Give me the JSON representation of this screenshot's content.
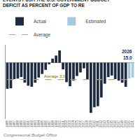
{
  "chart_data": {
    "type": "bar",
    "title": "EVENTS PUSH THE U.S. GOVERNMENT BUDGET DEFICIT AS PERCENT OF GDP TO RE",
    "categories": [
      "1985",
      "1986",
      "1987",
      "1988",
      "1989",
      "1990",
      "1991",
      "1992",
      "1993",
      "1994",
      "1995",
      "1996",
      "1997",
      "1998",
      "1999",
      "2000",
      "2001",
      "2002",
      "2003",
      "2004",
      "2005",
      "2006",
      "2007",
      "2008",
      "2009",
      "2010",
      "2011",
      "2012",
      "2013",
      "2014",
      "2015",
      "2016",
      "2017",
      "2018",
      "2019",
      "2020",
      "2021"
    ],
    "series": [
      {
        "name": "Actual",
        "color": "#1c2b40",
        "values": [
          -5.1,
          -5.0,
          -3.2,
          -3.1,
          -2.8,
          -3.9,
          -4.5,
          -4.7,
          -3.9,
          -2.9,
          -2.2,
          -1.4,
          -0.3,
          0.8,
          1.4,
          2.4,
          -1.3,
          -3.8,
          -4.6,
          -3.5,
          -2.6,
          -1.9,
          -1.1,
          -3.2,
          -9.8,
          -8.7,
          -8.5,
          -6.8,
          -4.1,
          -2.8,
          -2.5,
          -3.2,
          -3.5,
          -3.9,
          -4.7,
          null,
          null
        ]
      },
      {
        "name": "Estimated",
        "color": "#a8c8dc",
        "values": [
          null,
          null,
          null,
          null,
          null,
          null,
          null,
          null,
          null,
          null,
          null,
          null,
          null,
          null,
          null,
          null,
          null,
          null,
          null,
          null,
          null,
          null,
          null,
          null,
          null,
          null,
          null,
          null,
          null,
          null,
          null,
          null,
          null,
          null,
          null,
          -3.1,
          -2.9
        ]
      },
      {
        "name": "Average",
        "type": "line",
        "color": "#c8a832",
        "line_style": "dashed",
        "values": [
          -3.3,
          -3.3,
          -3.3,
          -3.3,
          -3.3,
          -3.3,
          -3.3,
          -3.3,
          -3.3,
          -3.3,
          -3.3,
          -3.3,
          -3.3,
          -3.3,
          -3.3,
          -3.3,
          -3.3,
          -3.3,
          -3.3,
          -3.3,
          -3.3,
          -3.3,
          -3.3,
          -3.3,
          -3.3,
          -3.3,
          -3.3,
          -3.3,
          -3.3,
          -3.3,
          -3.3,
          -3.3,
          -3.3,
          -3.3,
          -3.3,
          -3.3,
          -3.3
        ]
      }
    ],
    "annotations": [
      "Average 3.3",
      "2026",
      "15.0",
      "Congressional Budget Office"
    ],
    "ylim": [
      -11,
      3.5
    ],
    "yticks": [],
    "tick_labels": "x",
    "grid": false,
    "legend": "upper left"
  }
}
